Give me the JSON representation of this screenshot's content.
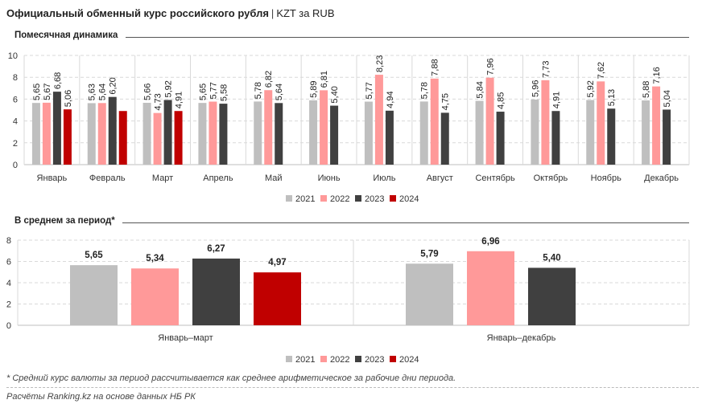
{
  "header": {
    "title": "Официальный обменный курс российского рубля",
    "unit": "KZT за RUB"
  },
  "colors": {
    "2021": "#bfbfbf",
    "2022": "#ff9999",
    "2023": "#404040",
    "2024": "#c00000"
  },
  "chart_data": [
    {
      "type": "bar",
      "title": "Помесячная динамика",
      "ylim": [
        0,
        10
      ],
      "yticks": [
        0,
        2,
        4,
        6,
        8,
        10
      ],
      "grid": true,
      "legend_position": "bottom",
      "categories": [
        "Январь",
        "Февраль",
        "Март",
        "Апрель",
        "Май",
        "Июнь",
        "Июль",
        "Август",
        "Сентябрь",
        "Октябрь",
        "Ноябрь",
        "Декабрь"
      ],
      "series": [
        {
          "name": "2021",
          "values": [
            5.65,
            5.63,
            5.66,
            5.65,
            5.78,
            5.89,
            5.77,
            5.78,
            5.84,
            5.96,
            5.92,
            5.88
          ],
          "labels": [
            "5,65",
            "5,63",
            "5,66",
            "5,65",
            "5,78",
            "5,89",
            "5,77",
            "5,78",
            "5,84",
            "5,96",
            "5,92",
            "5,88"
          ]
        },
        {
          "name": "2022",
          "values": [
            5.67,
            5.64,
            4.73,
            5.77,
            6.82,
            6.81,
            8.23,
            7.88,
            7.96,
            7.73,
            7.62,
            7.16
          ],
          "labels": [
            "5,67",
            "5,64",
            "4,73",
            "5,77",
            "6,82",
            "6,81",
            "8,23",
            "7,88",
            "7,96",
            "7,73",
            "7,62",
            "7,16"
          ]
        },
        {
          "name": "2023",
          "values": [
            6.68,
            6.2,
            5.92,
            5.58,
            5.64,
            5.4,
            4.94,
            4.75,
            4.85,
            4.91,
            5.13,
            5.04
          ],
          "labels": [
            "6,68",
            "6,20",
            "5,92",
            "5,58",
            "5,64",
            "5,40",
            "4,94",
            "4,75",
            "4,85",
            "4,91",
            "5,13",
            "5,04"
          ]
        },
        {
          "name": "2024",
          "values": [
            5.06,
            4.91,
            4.91,
            null,
            null,
            null,
            null,
            null,
            null,
            null,
            null,
            null
          ],
          "labels": [
            "5,06",
            "",
            "4,91",
            "",
            "",
            "",
            "",
            "",
            "",
            "",
            "",
            ""
          ]
        }
      ]
    },
    {
      "type": "bar",
      "title": "В среднем за период*",
      "ylim": [
        0,
        8
      ],
      "yticks": [
        0,
        2,
        4,
        6,
        8
      ],
      "grid": true,
      "legend_position": "bottom",
      "categories": [
        "Январь–март",
        "Январь–декабрь"
      ],
      "series": [
        {
          "name": "2021",
          "values": [
            5.65,
            5.79
          ],
          "labels": [
            "5,65",
            "5,79"
          ]
        },
        {
          "name": "2022",
          "values": [
            5.34,
            6.96
          ],
          "labels": [
            "5,34",
            "6,96"
          ]
        },
        {
          "name": "2023",
          "values": [
            6.27,
            5.4
          ],
          "labels": [
            "6,27",
            "5,40"
          ]
        },
        {
          "name": "2024",
          "values": [
            4.97,
            null
          ],
          "labels": [
            "4,97",
            ""
          ]
        }
      ]
    }
  ],
  "footnote": "* Средний курс валюты за период рассчитывается как среднее арифметическое за рабочие дни периода.",
  "source": "Расчёты Ranking.kz на основе данных НБ РК"
}
